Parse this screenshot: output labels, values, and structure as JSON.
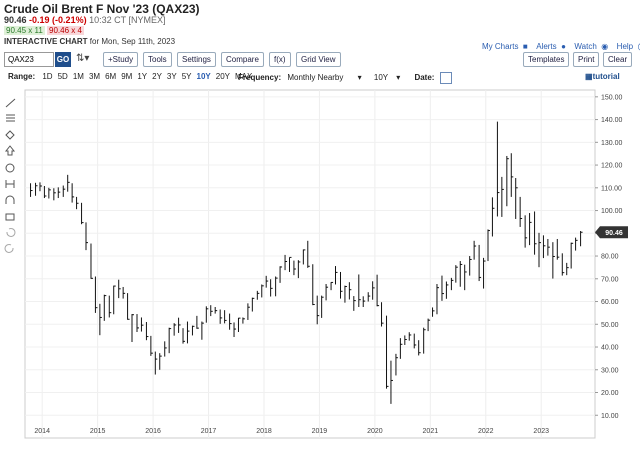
{
  "header": {
    "title": "Crude Oil Brent F Nov '23 (QAX23)",
    "last": "90.46",
    "change": "-0.19 (-0.21%)",
    "time": "10:32 CT [NYMEX]",
    "bid": "90.45 x 11",
    "ask": "90.46 x 4",
    "chart_label": "INTERACTIVE CHART",
    "chart_date": "for Mon, Sep 11th, 2023"
  },
  "links": [
    "My Charts",
    "Alerts",
    "Watch",
    "Help"
  ],
  "toolbar": {
    "symbol": "QAX23",
    "go": "GO",
    "buttons": [
      "+Study",
      "Tools",
      "Settings",
      "Compare",
      "f(x)",
      "Grid View"
    ],
    "right_buttons": [
      "Templates",
      "Print",
      "Clear"
    ]
  },
  "range_bar": {
    "label": "Range:",
    "ranges": [
      "1D",
      "5D",
      "1M",
      "3M",
      "6M",
      "9M",
      "1Y",
      "2Y",
      "3Y",
      "5Y",
      "10Y",
      "20Y",
      "MAX"
    ],
    "active": "10Y",
    "frequency_label": "Frequency:",
    "frequency": "Monthly Nearby",
    "period": "10Y",
    "date_label": "Date:",
    "tutorial": "tutorial"
  },
  "chart_data": {
    "type": "ohlc",
    "x": [
      2013.79,
      2013.88,
      2013.96,
      2014.04,
      2014.12,
      2014.21,
      2014.29,
      2014.38,
      2014.46,
      2014.54,
      2014.62,
      2014.71,
      2014.79,
      2014.88,
      2014.96,
      2015.04,
      2015.12,
      2015.21,
      2015.29,
      2015.38,
      2015.46,
      2015.54,
      2015.62,
      2015.71,
      2015.79,
      2015.88,
      2015.96,
      2016.04,
      2016.12,
      2016.21,
      2016.29,
      2016.38,
      2016.46,
      2016.54,
      2016.62,
      2016.71,
      2016.79,
      2016.88,
      2016.96,
      2017.04,
      2017.12,
      2017.21,
      2017.29,
      2017.38,
      2017.46,
      2017.54,
      2017.62,
      2017.71,
      2017.79,
      2017.88,
      2017.96,
      2018.04,
      2018.12,
      2018.21,
      2018.29,
      2018.38,
      2018.46,
      2018.54,
      2018.62,
      2018.71,
      2018.79,
      2018.88,
      2018.96,
      2019.04,
      2019.12,
      2019.21,
      2019.29,
      2019.38,
      2019.46,
      2019.54,
      2019.62,
      2019.71,
      2019.79,
      2019.88,
      2019.96,
      2020.04,
      2020.12,
      2020.21,
      2020.29,
      2020.38,
      2020.46,
      2020.54,
      2020.62,
      2020.71,
      2020.79,
      2020.88,
      2020.96,
      2021.04,
      2021.12,
      2021.21,
      2021.29,
      2021.38,
      2021.46,
      2021.54,
      2021.62,
      2021.71,
      2021.79,
      2021.88,
      2021.96,
      2022.04,
      2022.12,
      2022.21,
      2022.29,
      2022.38,
      2022.46,
      2022.54,
      2022.62,
      2022.71,
      2022.79,
      2022.88,
      2022.96,
      2023.04,
      2023.12,
      2023.21,
      2023.29,
      2023.38,
      2023.46,
      2023.54,
      2023.62,
      2023.71
    ],
    "high": [
      112.0,
      112.2,
      112.4,
      110.8,
      110.0,
      109.8,
      110.2,
      111.0,
      115.7,
      112.0,
      106.0,
      103.4,
      94.8,
      85.5,
      71.0,
      59.0,
      63.0,
      62.6,
      67.0,
      69.6,
      66.4,
      63.7,
      54.5,
      54.5,
      53.0,
      51.0,
      44.9,
      38.0,
      37.3,
      42.5,
      48.5,
      50.5,
      52.9,
      48.3,
      51.2,
      49.4,
      53.7,
      51.2,
      57.9,
      58.4,
      57.6,
      56.5,
      56.2,
      54.7,
      50.8,
      52.8,
      53.0,
      59.2,
      61.7,
      64.7,
      67.5,
      71.3,
      69.8,
      71.0,
      75.5,
      80.5,
      79.4,
      78.0,
      78.2,
      82.9,
      86.7,
      76.4,
      62.6,
      62.6,
      67.7,
      68.5,
      75.6,
      73.0,
      67.0,
      68.5,
      62.4,
      71.9,
      62.3,
      64.1,
      68.9,
      71.8,
      59.7,
      53.8,
      34.0,
      37.0,
      43.9,
      45.1,
      46.5,
      45.9,
      43.0,
      48.5,
      52.5,
      57.4,
      67.7,
      71.4,
      68.8,
      70.4,
      76.0,
      77.8,
      76.2,
      80.0,
      86.7,
      84.9,
      79.2,
      91.7,
      105.8,
      139.1,
      114.8,
      124.0,
      125.2,
      114.3,
      106.0,
      97.9,
      98.9,
      99.6,
      90.2,
      89.1,
      87.5,
      86.1,
      87.5,
      81.2,
      77.0,
      85.9,
      88.1,
      91.0
    ],
    "low": [
      106.0,
      106.5,
      108.5,
      105.5,
      105.3,
      104.5,
      105.5,
      106.0,
      108.3,
      103.5,
      100.6,
      94.0,
      82.6,
      70.0,
      55.0,
      45.2,
      51.5,
      53.0,
      54.4,
      61.5,
      61.3,
      52.0,
      42.2,
      46.6,
      46.8,
      43.0,
      36.1,
      27.9,
      30.0,
      35.8,
      37.3,
      45.0,
      46.2,
      41.5,
      41.6,
      45.1,
      48.0,
      43.2,
      50.7,
      53.6,
      54.7,
      50.2,
      50.4,
      47.6,
      44.4,
      46.6,
      50.3,
      51.9,
      55.6,
      60.8,
      61.8,
      66.1,
      62.2,
      62.3,
      68.2,
      73.8,
      73.0,
      71.6,
      70.3,
      76.3,
      74.8,
      58.4,
      50.0,
      52.8,
      60.5,
      65.0,
      67.5,
      61.3,
      59.5,
      60.9,
      55.9,
      57.6,
      57.6,
      60.0,
      60.8,
      57.9,
      49.0,
      21.7,
      15.0,
      27.5,
      34.8,
      40.9,
      42.8,
      39.4,
      36.3,
      37.1,
      47.0,
      53.3,
      54.4,
      60.3,
      61.2,
      65.0,
      68.3,
      66.5,
      65.0,
      71.4,
      78.4,
      69.0,
      65.7,
      77.8,
      88.6,
      97.4,
      97.2,
      101.9,
      106.0,
      96.3,
      92.8,
      83.7,
      84.8,
      80.6,
      75.1,
      79.1,
      80.2,
      70.1,
      78.4,
      71.4,
      71.6,
      74.5,
      82.4,
      84.3
    ],
    "close": [
      108.8,
      110.9,
      110.8,
      106.4,
      109.1,
      107.8,
      108.1,
      109.4,
      112.4,
      106.0,
      103.2,
      94.7,
      85.9,
      70.2,
      57.3,
      53.0,
      62.6,
      55.1,
      66.8,
      65.6,
      63.6,
      52.2,
      54.2,
      48.4,
      49.6,
      44.6,
      37.3,
      34.7,
      36.0,
      39.6,
      48.1,
      49.7,
      49.7,
      42.5,
      47.0,
      49.1,
      48.3,
      50.5,
      56.8,
      55.7,
      56.0,
      52.8,
      51.7,
      50.3,
      47.9,
      52.7,
      52.4,
      57.5,
      61.4,
      63.6,
      66.9,
      69.0,
      65.8,
      70.3,
      75.2,
      77.6,
      79.4,
      74.3,
      77.4,
      82.7,
      75.5,
      58.7,
      53.8,
      61.9,
      66.3,
      68.4,
      72.8,
      64.5,
      66.6,
      65.2,
      60.4,
      60.8,
      60.2,
      62.4,
      66.0,
      58.2,
      50.5,
      22.7,
      25.3,
      35.3,
      41.2,
      43.3,
      45.3,
      40.9,
      37.5,
      47.6,
      51.8,
      55.9,
      66.1,
      63.5,
      67.3,
      69.3,
      75.1,
      76.3,
      73.0,
      78.5,
      84.4,
      70.6,
      77.8,
      91.2,
      101.0,
      107.9,
      109.3,
      122.8,
      114.8,
      110.0,
      96.5,
      88.0,
      94.8,
      85.4,
      85.9,
      84.5,
      83.9,
      79.8,
      79.5,
      72.7,
      74.9,
      85.6,
      86.9,
      90.46
    ],
    "color": "#111111",
    "xlim": [
      2013.69,
      2023.97
    ],
    "xticks": [
      2014,
      2015,
      2016,
      2017,
      2018,
      2019,
      2020,
      2021,
      2022,
      2023
    ],
    "ylim": [
      0,
      153
    ],
    "yticks": [
      {
        "value": 10,
        "label": "10.00"
      },
      {
        "value": 20,
        "label": "20.00"
      },
      {
        "value": 30,
        "label": "30.00"
      },
      {
        "value": 40,
        "label": "40.00"
      },
      {
        "value": 50,
        "label": "50.00"
      },
      {
        "value": 60,
        "label": "60.00"
      },
      {
        "value": 70,
        "label": "70.00"
      },
      {
        "value": 80,
        "label": "80.00"
      },
      {
        "value": 90,
        "label": "90.00"
      },
      {
        "value": 100,
        "label": "100.00"
      },
      {
        "value": 110,
        "label": "110.00"
      },
      {
        "value": 120,
        "label": "120.00"
      },
      {
        "value": 130,
        "label": "130.00"
      },
      {
        "value": 140,
        "label": "140.00"
      },
      {
        "value": 150,
        "label": "150.00"
      }
    ],
    "grid": true
  }
}
